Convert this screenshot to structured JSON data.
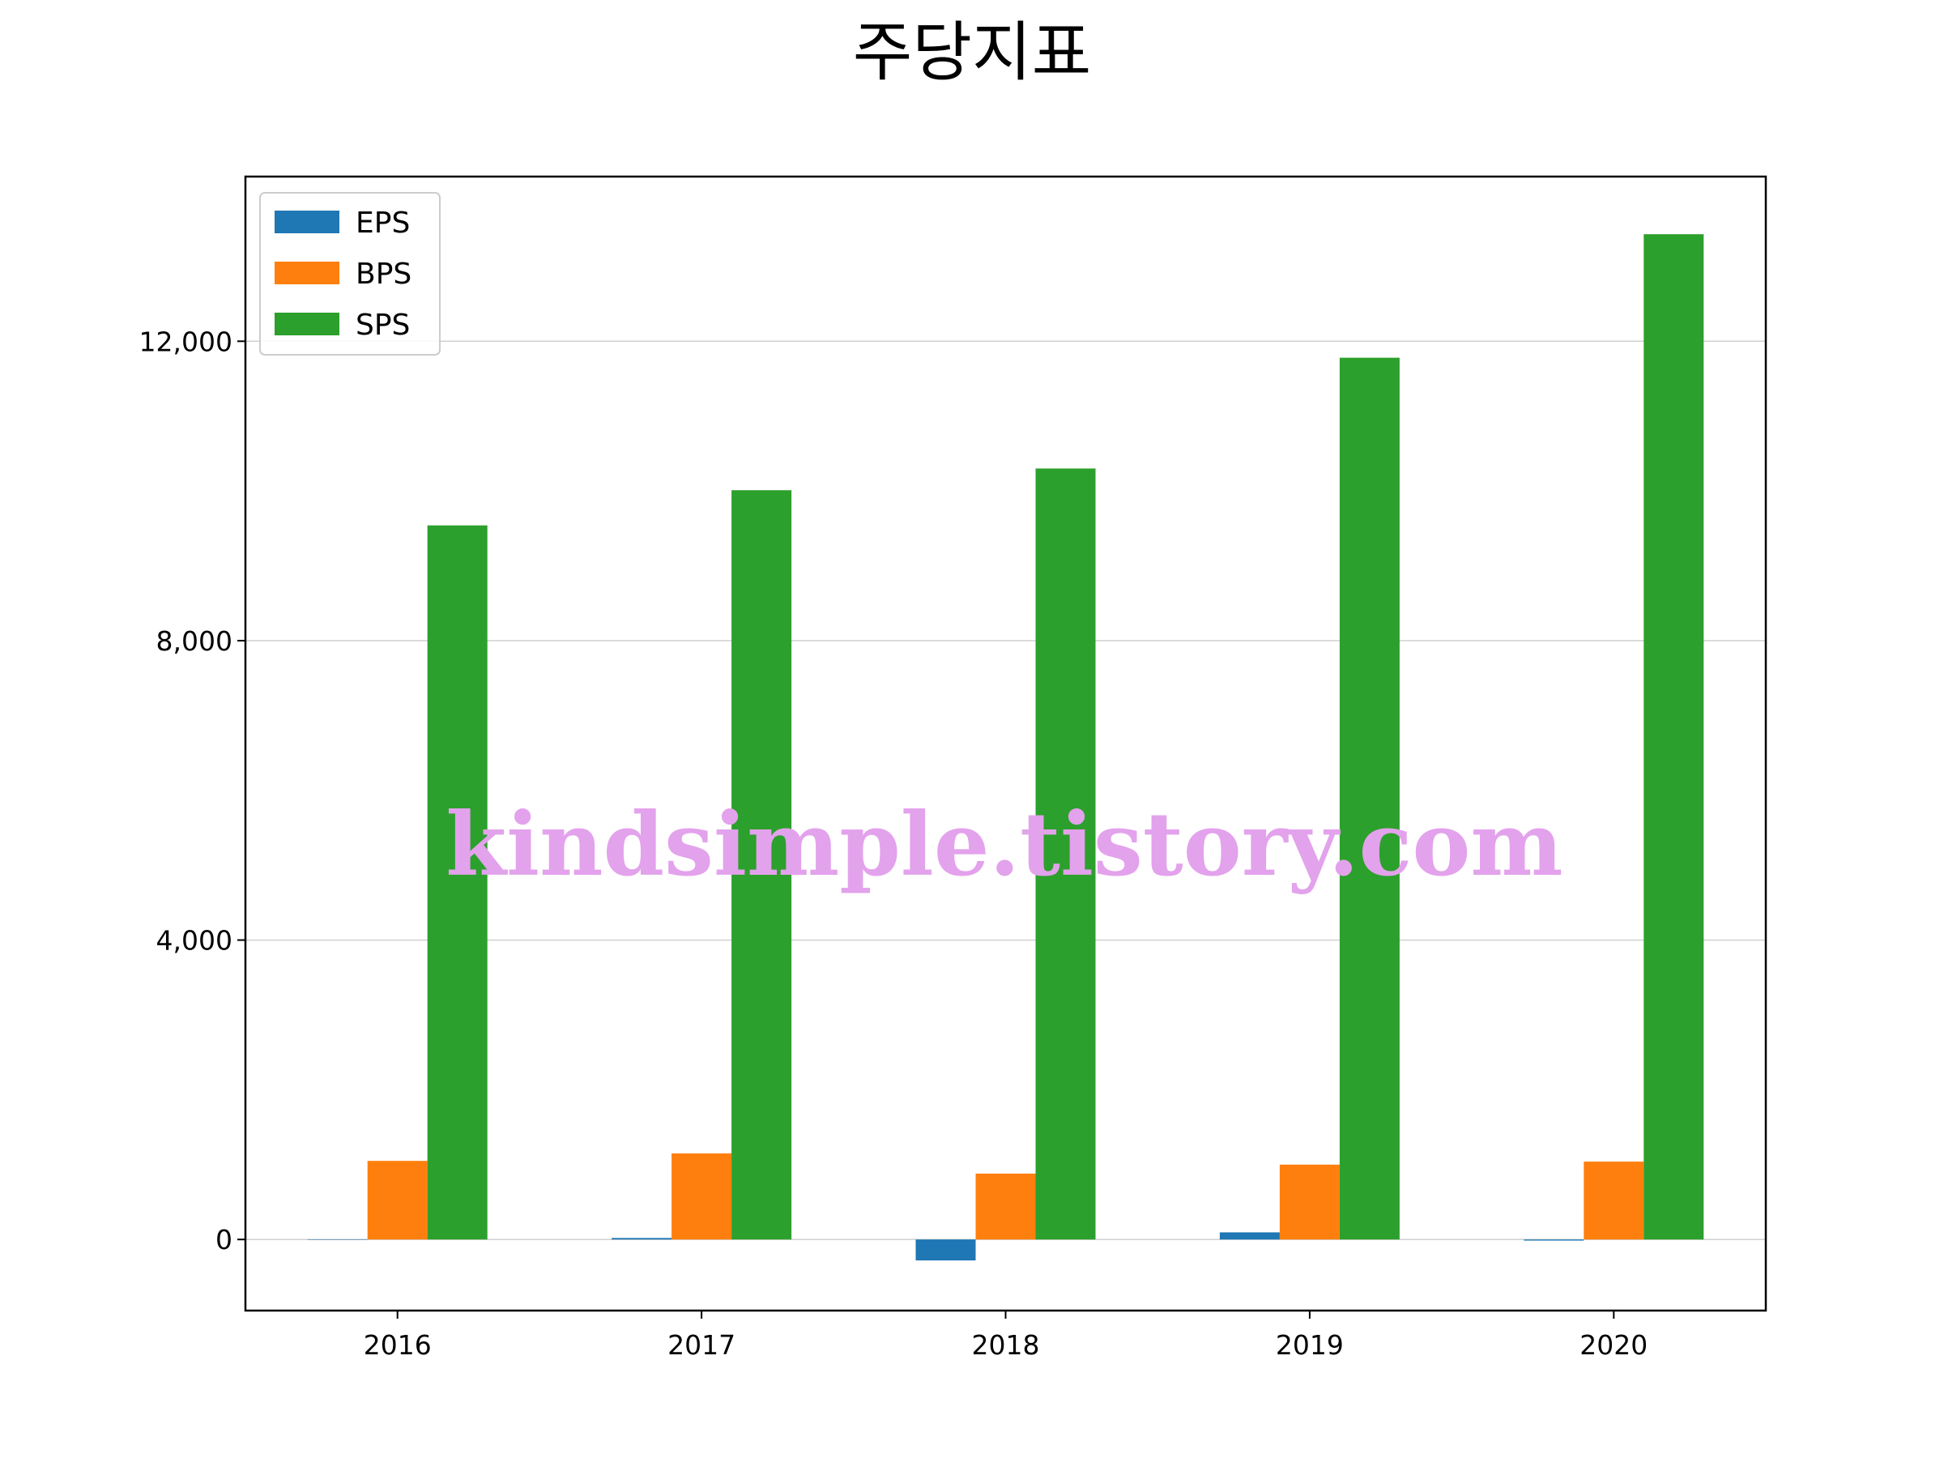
{
  "chart_data": {
    "type": "bar",
    "title": "주당지표",
    "xlabel": "",
    "ylabel": "",
    "categories": [
      "2016",
      "2017",
      "2018",
      "2019",
      "2020"
    ],
    "series": [
      {
        "name": "EPS",
        "values": [
          0,
          20,
          -280,
          95,
          -15
        ],
        "color": "#1f77b4"
      },
      {
        "name": "BPS",
        "values": [
          1050,
          1150,
          880,
          1000,
          1040
        ],
        "color": "#ff7f0e"
      },
      {
        "name": "SPS",
        "values": [
          9540,
          10010,
          10300,
          11780,
          13430
        ],
        "color": "#2ca02c"
      }
    ],
    "ylim": [
      -950,
      14200
    ],
    "yticks": [
      0,
      4000,
      8000,
      12000
    ],
    "ytick_labels": [
      "0",
      "4,000",
      "8,000",
      "12,000"
    ],
    "grid": "horizontal",
    "legend": "top-left"
  },
  "watermark": "kindsimple.tistory.com"
}
